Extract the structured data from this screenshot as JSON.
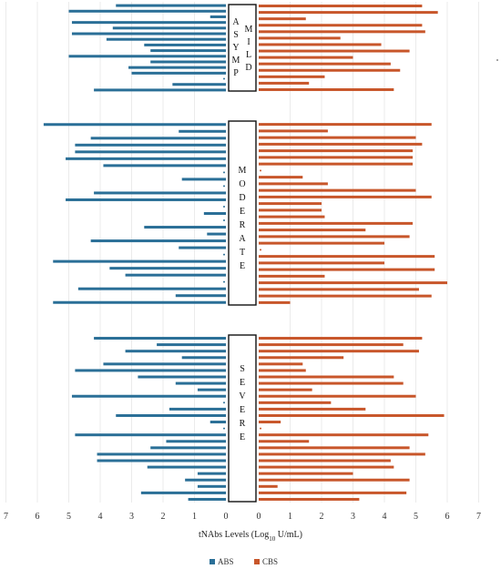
{
  "chart_data": {
    "type": "bar",
    "orientation": "horizontal-butterfly",
    "xlabel": "tNAbs Levels (Log",
    "xlabel_sub": "10",
    "xlabel_tail": " U/mL)",
    "xlim": [
      0,
      7
    ],
    "tick_labels": [
      "7",
      "6",
      "5",
      "4",
      "3",
      "2",
      "1",
      "0",
      "0",
      "1",
      "2",
      "3",
      "4",
      "5",
      "6",
      "7"
    ],
    "grid": true,
    "legend_position": "bottom",
    "colors": {
      "ABS": "#2a6f97",
      "CBS": "#c8562a"
    },
    "groups": [
      {
        "label": [
          "A",
          "S",
          "Y",
          "M",
          "P"
        ],
        "label2": [
          "M",
          "I",
          "L",
          "D"
        ],
        "abs": [
          3.5,
          5.0,
          0.5,
          4.9,
          3.6,
          4.9,
          3.8,
          2.6,
          2.4,
          5.0,
          2.4,
          3.1,
          3.0,
          0,
          1.7,
          4.2
        ],
        "cbs": [
          5.2,
          5.7,
          1.5,
          5.2,
          5.3,
          2.6,
          3.9,
          4.8,
          3.0,
          4.2,
          4.5,
          2.1,
          1.6,
          4.3
        ]
      },
      {
        "label": [
          "M",
          "O",
          "D",
          "E",
          "R",
          "A",
          "T",
          "E"
        ],
        "abs": [
          5.8,
          1.5,
          4.3,
          4.8,
          4.8,
          5.1,
          3.9,
          0,
          1.4,
          0,
          4.2,
          5.1,
          0,
          0.7,
          0,
          2.6,
          0.6,
          4.3,
          1.5,
          0,
          5.5,
          3.7,
          3.2,
          0,
          4.7,
          1.6,
          5.5
        ],
        "cbs": [
          5.5,
          2.2,
          5.0,
          5.2,
          4.9,
          4.9,
          4.9,
          0,
          1.4,
          2.2,
          5.0,
          5.5,
          2.0,
          2.0,
          2.1,
          4.9,
          3.4,
          4.8,
          4.0,
          0,
          5.6,
          4.0,
          5.6,
          2.1,
          6.0,
          5.1,
          5.5,
          1.0
        ]
      },
      {
        "label": [
          "S",
          "E",
          "V",
          "E",
          "R",
          "E"
        ],
        "abs": [
          4.2,
          2.2,
          3.2,
          1.4,
          3.9,
          4.8,
          2.8,
          1.6,
          0.9,
          4.9,
          0,
          1.8,
          3.5,
          0.5,
          0,
          4.8,
          1.9,
          2.4,
          4.1,
          4.1,
          2.5,
          0.9,
          1.3,
          0.9,
          2.7,
          1.2
        ],
        "cbs": [
          5.2,
          4.6,
          5.1,
          2.7,
          1.4,
          1.5,
          4.3,
          4.6,
          1.7,
          5.0,
          2.3,
          3.4,
          5.9,
          0.7,
          0,
          5.4,
          1.6,
          4.8,
          5.3,
          4.2,
          4.3,
          3.0,
          4.8,
          0.6,
          4.7,
          3.2
        ]
      }
    ],
    "legend": [
      "ABS",
      "CBS"
    ]
  }
}
